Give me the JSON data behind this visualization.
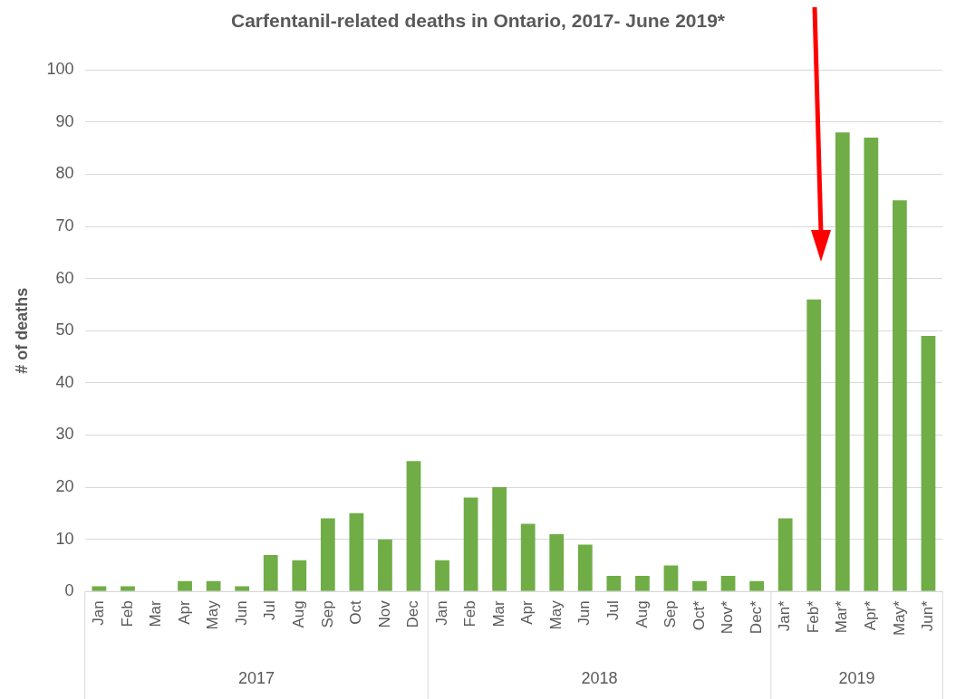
{
  "chart_data": {
    "type": "bar",
    "title": "Carfentanil-related deaths in Ontario, 2017- June 2019*",
    "ylabel": "# of deaths",
    "categories": [
      "Jan",
      "Feb",
      "Mar",
      "Apr",
      "May",
      "Jun",
      "Jul",
      "Aug",
      "Sep",
      "Oct",
      "Nov",
      "Dec",
      "Jan",
      "Feb",
      "Mar",
      "Apr",
      "May",
      "Jun",
      "Jul",
      "Aug",
      "Sep",
      "Oct*",
      "Nov*",
      "Dec*",
      "Jan*",
      "Feb*",
      "Mar*",
      "Apr*",
      "May*",
      "Jun*"
    ],
    "values": [
      1,
      1,
      0,
      2,
      2,
      1,
      7,
      6,
      14,
      15,
      10,
      25,
      6,
      18,
      20,
      13,
      11,
      9,
      3,
      3,
      5,
      2,
      3,
      2,
      14,
      56,
      88,
      87,
      75,
      49
    ],
    "color": "#70ad47",
    "ylim": [
      0,
      100
    ],
    "yticks": [
      0,
      10,
      20,
      30,
      40,
      50,
      60,
      70,
      80,
      90,
      100
    ],
    "grid": "y",
    "annotations": [
      "2017",
      "2018",
      "2019"
    ]
  }
}
